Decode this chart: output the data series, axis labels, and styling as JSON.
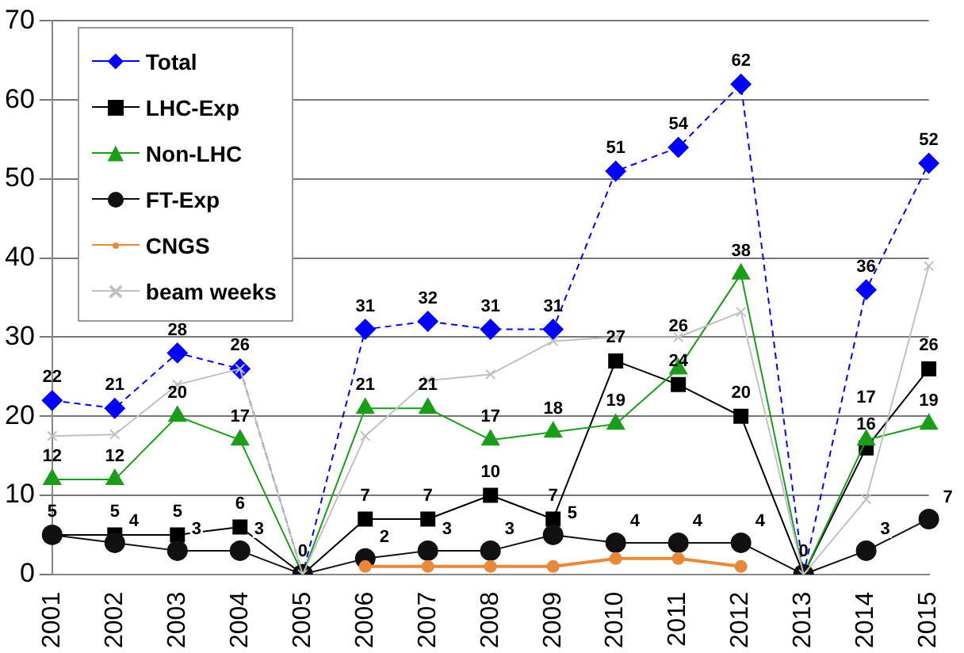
{
  "chart_data": {
    "type": "line",
    "categories": [
      "2001",
      "2002",
      "2003",
      "2004",
      "2005",
      "2006",
      "2007",
      "2008",
      "2009",
      "2010",
      "2011",
      "2012",
      "2013",
      "2014",
      "2015"
    ],
    "ylim": [
      0,
      70
    ],
    "yticks": [
      0,
      10,
      20,
      30,
      40,
      50,
      60,
      70
    ],
    "grid": "y",
    "legend": "top left",
    "series": [
      {
        "name": "Total",
        "color": "#0000ff",
        "marker": "diamond",
        "line_style": "dashed",
        "values": [
          22,
          21,
          28,
          26,
          0,
          31,
          32,
          31,
          31,
          51,
          54,
          62,
          0,
          36,
          52
        ],
        "value_labels": [
          "22",
          "21",
          "28",
          "26",
          "0",
          "31",
          "32",
          "31",
          "31",
          "51",
          "54",
          "62",
          "0",
          "36",
          "52"
        ]
      },
      {
        "name": "LHC-Exp",
        "color": "#000000",
        "marker": "square",
        "values": [
          5,
          5,
          5,
          6,
          0,
          7,
          7,
          10,
          7,
          27,
          24,
          20,
          0,
          16,
          26
        ],
        "value_labels": [
          "5",
          "5",
          "5",
          "6",
          null,
          "7",
          "7",
          "10",
          "7",
          "27",
          "24",
          "20",
          null,
          "16",
          "26"
        ]
      },
      {
        "name": "Non-LHC",
        "color": "#1a9e1a",
        "marker": "triangle",
        "values": [
          12,
          12,
          20,
          17,
          0,
          21,
          21,
          17,
          18,
          19,
          26,
          38,
          0,
          17,
          19
        ],
        "value_labels": [
          "12",
          "12",
          "20",
          "17",
          null,
          "21",
          "21",
          "17",
          "18",
          "19",
          "26",
          "38",
          null,
          "17",
          "19"
        ]
      },
      {
        "name": "FT-Exp",
        "color": "#111111",
        "marker": "circle",
        "values": [
          5,
          4,
          3,
          3,
          0,
          2,
          3,
          3,
          5,
          4,
          4,
          4,
          0,
          3,
          7
        ],
        "value_labels": [
          null,
          "4",
          "3",
          "3",
          null,
          "2",
          "3",
          "3",
          "5",
          "4",
          "4",
          "4",
          null,
          "3",
          "7"
        ]
      },
      {
        "name": "CNGS",
        "color": "#e8883a",
        "marker": "circle",
        "values": [
          null,
          null,
          null,
          null,
          null,
          1,
          1,
          1,
          1,
          2,
          2,
          1,
          null,
          null,
          null
        ]
      },
      {
        "name": "beam weeks",
        "color": "#c0c0c0",
        "marker": "cross",
        "values": [
          17.5,
          17.7,
          24,
          26,
          0,
          17.5,
          24.5,
          25.3,
          29.5,
          30,
          30,
          33.2,
          0,
          9.5,
          39
        ]
      }
    ]
  }
}
